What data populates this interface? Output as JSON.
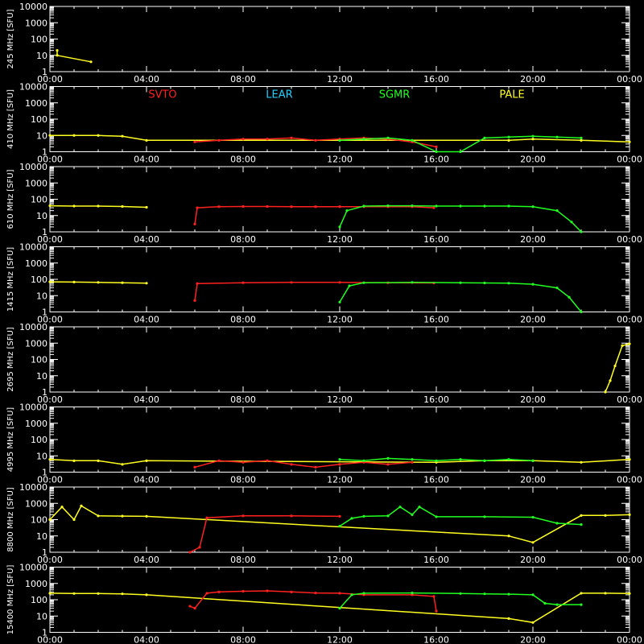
{
  "chart_data": {
    "type": "scatter",
    "x_ticks": [
      "00:00",
      "04:00",
      "08:00",
      "12:00",
      "16:00",
      "20:00",
      "00:00"
    ],
    "y_tick_labels": [
      "1",
      "10",
      "100",
      "1000",
      "10000"
    ],
    "y_log_range": [
      1,
      10000
    ],
    "x_range_hours": [
      0,
      24
    ],
    "legend": [
      {
        "name": "SVTO",
        "color": "#ff2020"
      },
      {
        "name": "LEAR",
        "color": "#20d0ff"
      },
      {
        "name": "SGMR",
        "color": "#20ff20"
      },
      {
        "name": "PALE",
        "color": "#ffff20"
      }
    ],
    "panels": [
      {
        "ylabel": "245 MHz [SFU]",
        "series": [
          {
            "color": "#ffff20",
            "points": [
              [
                0.3,
                20
              ],
              [
                0.3,
                10
              ],
              [
                1.7,
                4
              ]
            ]
          }
        ]
      },
      {
        "ylabel": "410 MHz [SFU]",
        "series": [
          {
            "color": "#ffff20",
            "points": [
              [
                0,
                10
              ],
              [
                1,
                10
              ],
              [
                2,
                10
              ],
              [
                3,
                9
              ],
              [
                4,
                5
              ],
              [
                19,
                5
              ],
              [
                20,
                6
              ],
              [
                22,
                5
              ],
              [
                24,
                4
              ]
            ]
          },
          {
            "color": "#ff2020",
            "points": [
              [
                6,
                4
              ],
              [
                7,
                5
              ],
              [
                8,
                6
              ],
              [
                9,
                6
              ],
              [
                10,
                7
              ],
              [
                11,
                5
              ],
              [
                12,
                6
              ],
              [
                13,
                7
              ],
              [
                14,
                6
              ],
              [
                15,
                4
              ],
              [
                16,
                2
              ]
            ]
          },
          {
            "color": "#20ff20",
            "points": [
              [
                12,
                5
              ],
              [
                13,
                6
              ],
              [
                14,
                7
              ],
              [
                15,
                5
              ],
              [
                16,
                1
              ],
              [
                17,
                1
              ],
              [
                18,
                7
              ],
              [
                19,
                8
              ],
              [
                20,
                9
              ],
              [
                21,
                8
              ],
              [
                22,
                7
              ]
            ]
          }
        ]
      },
      {
        "ylabel": "610 MHz [SFU]",
        "series": [
          {
            "color": "#ffff20",
            "points": [
              [
                0,
                40
              ],
              [
                1,
                38
              ],
              [
                2,
                38
              ],
              [
                3,
                36
              ],
              [
                4,
                32
              ]
            ]
          },
          {
            "color": "#ff2020",
            "points": [
              [
                6,
                3
              ],
              [
                6.1,
                30
              ],
              [
                7,
                35
              ],
              [
                8,
                36
              ],
              [
                9,
                36
              ],
              [
                10,
                35
              ],
              [
                11,
                35
              ],
              [
                12,
                35
              ],
              [
                13,
                35
              ],
              [
                14,
                35
              ],
              [
                15,
                35
              ],
              [
                15.9,
                30
              ]
            ]
          },
          {
            "color": "#20ff20",
            "points": [
              [
                12,
                2
              ],
              [
                12.3,
                20
              ],
              [
                13,
                38
              ],
              [
                14,
                40
              ],
              [
                15,
                40
              ],
              [
                16,
                38
              ],
              [
                17,
                38
              ],
              [
                18,
                38
              ],
              [
                19,
                38
              ],
              [
                20,
                35
              ],
              [
                21,
                20
              ],
              [
                21.6,
                4
              ],
              [
                22,
                1
              ]
            ]
          }
        ]
      },
      {
        "ylabel": "1415 MHz [SFU]",
        "series": [
          {
            "color": "#ffff20",
            "points": [
              [
                0,
                70
              ],
              [
                1,
                68
              ],
              [
                2,
                65
              ],
              [
                3,
                62
              ],
              [
                4,
                58
              ]
            ]
          },
          {
            "color": "#ff2020",
            "points": [
              [
                6,
                5
              ],
              [
                6.1,
                55
              ],
              [
                8,
                62
              ],
              [
                10,
                65
              ],
              [
                12,
                65
              ],
              [
                14,
                62
              ],
              [
                15.9,
                60
              ]
            ]
          },
          {
            "color": "#20ff20",
            "points": [
              [
                12,
                4
              ],
              [
                12.4,
                40
              ],
              [
                13,
                62
              ],
              [
                15,
                65
              ],
              [
                17,
                62
              ],
              [
                18,
                60
              ],
              [
                19,
                58
              ],
              [
                20,
                50
              ],
              [
                21,
                30
              ],
              [
                21.5,
                8
              ],
              [
                22,
                1
              ]
            ]
          }
        ]
      },
      {
        "ylabel": "2695 MHz [SFU]",
        "series": [
          {
            "color": "#ffff20",
            "points": [
              [
                23,
                1
              ],
              [
                23.2,
                5
              ],
              [
                23.4,
                40
              ],
              [
                23.7,
                700
              ],
              [
                24,
                900
              ]
            ]
          }
        ]
      },
      {
        "ylabel": "4995 MHz [SFU]",
        "series": [
          {
            "color": "#ffff20",
            "points": [
              [
                0,
                6
              ],
              [
                1,
                5
              ],
              [
                2,
                5
              ],
              [
                3,
                3
              ],
              [
                4,
                5
              ],
              [
                16,
                4
              ],
              [
                18,
                5
              ],
              [
                20,
                5
              ],
              [
                22,
                4
              ],
              [
                24,
                6
              ]
            ]
          },
          {
            "color": "#ff2020",
            "points": [
              [
                6,
                2
              ],
              [
                7,
                5
              ],
              [
                8,
                4
              ],
              [
                9,
                5
              ],
              [
                10,
                3
              ],
              [
                11,
                2
              ],
              [
                12,
                3
              ],
              [
                13,
                4
              ],
              [
                14,
                3
              ],
              [
                15,
                4
              ]
            ]
          },
          {
            "color": "#20ff20",
            "points": [
              [
                12,
                6
              ],
              [
                13,
                5
              ],
              [
                14,
                7
              ],
              [
                15,
                6
              ],
              [
                16,
                5
              ],
              [
                17,
                6
              ],
              [
                18,
                5
              ],
              [
                19,
                6
              ],
              [
                20,
                5
              ]
            ]
          }
        ]
      },
      {
        "ylabel": "8800 MHz [SFU]",
        "series": [
          {
            "color": "#ffff20",
            "points": [
              [
                0,
                100
              ],
              [
                0.5,
                600
              ],
              [
                1,
                100
              ],
              [
                1.3,
                700
              ],
              [
                2,
                170
              ],
              [
                3,
                165
              ],
              [
                4,
                160
              ],
              [
                19,
                10
              ],
              [
                20,
                4
              ],
              [
                22,
                180
              ],
              [
                23,
                180
              ],
              [
                24,
                200
              ]
            ]
          },
          {
            "color": "#ff2020",
            "points": [
              [
                5.8,
                1
              ],
              [
                6.2,
                2
              ],
              [
                6.5,
                130
              ],
              [
                8,
                170
              ],
              [
                10,
                170
              ],
              [
                12,
                160
              ]
            ]
          },
          {
            "color": "#20ff20",
            "points": [
              [
                12,
                40
              ],
              [
                12.5,
                120
              ],
              [
                13,
                160
              ],
              [
                14,
                170
              ],
              [
                14.5,
                600
              ],
              [
                15,
                200
              ],
              [
                15.3,
                600
              ],
              [
                16,
                150
              ],
              [
                18,
                150
              ],
              [
                20,
                140
              ],
              [
                21,
                60
              ],
              [
                22,
                50
              ]
            ]
          }
        ]
      },
      {
        "ylabel": "15400 MHz [SFU]",
        "series": [
          {
            "color": "#ffff20",
            "points": [
              [
                0,
                250
              ],
              [
                1,
                240
              ],
              [
                2,
                240
              ],
              [
                3,
                230
              ],
              [
                4,
                200
              ],
              [
                19,
                7
              ],
              [
                20,
                4
              ],
              [
                22,
                250
              ],
              [
                23,
                250
              ],
              [
                24,
                240
              ]
            ]
          },
          {
            "color": "#ff2020",
            "points": [
              [
                5.8,
                40
              ],
              [
                6,
                30
              ],
              [
                6.5,
                250
              ],
              [
                7,
                300
              ],
              [
                8,
                330
              ],
              [
                9,
                350
              ],
              [
                10,
                300
              ],
              [
                11,
                260
              ],
              [
                12,
                250
              ],
              [
                13,
                200
              ],
              [
                15,
                200
              ],
              [
                15.9,
                160
              ],
              [
                16,
                20
              ]
            ]
          },
          {
            "color": "#20ff20",
            "points": [
              [
                12,
                30
              ],
              [
                12.5,
                200
              ],
              [
                13,
                250
              ],
              [
                15,
                260
              ],
              [
                17,
                240
              ],
              [
                18,
                230
              ],
              [
                19,
                220
              ],
              [
                20,
                200
              ],
              [
                20.5,
                60
              ],
              [
                21,
                50
              ],
              [
                22,
                50
              ]
            ]
          }
        ]
      }
    ]
  }
}
